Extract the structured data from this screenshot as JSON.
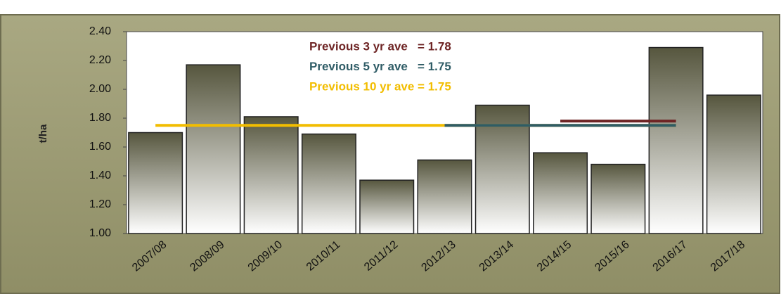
{
  "chart_data": {
    "type": "bar",
    "categories": [
      "2007/08",
      "2008/09",
      "2009/10",
      "2010/11",
      "2011/12",
      "2012/13",
      "2013/14",
      "2014/15",
      "2015/16",
      "2016/17",
      "2017/18"
    ],
    "values": [
      1.7,
      2.17,
      1.81,
      1.69,
      1.37,
      1.51,
      1.89,
      1.56,
      1.48,
      2.29,
      1.96
    ],
    "color": "#56563e",
    "ylabel": "t/ha",
    "ylim": [
      1.0,
      2.4
    ],
    "yticks": [
      {
        "value": 1.0,
        "label": "1.00"
      },
      {
        "value": 1.2,
        "label": "1.20"
      },
      {
        "value": 1.4,
        "label": "1.40"
      },
      {
        "value": 1.6,
        "label": "1.60"
      },
      {
        "value": 1.8,
        "label": "1.80"
      },
      {
        "value": 2.0,
        "label": "2.00"
      },
      {
        "value": 2.2,
        "label": "2.20"
      },
      {
        "value": 2.4,
        "label": "2.40"
      }
    ],
    "series": [
      {
        "name": "Previous 3 yr ave   = 1.78",
        "color": "#6e2424",
        "values": [
          null,
          null,
          null,
          null,
          null,
          null,
          null,
          1.78,
          1.78,
          1.78,
          null
        ]
      },
      {
        "name": "Previous 5 yr ave   = 1.75",
        "color": "#2f5c66",
        "values": [
          null,
          null,
          null,
          null,
          null,
          1.75,
          1.75,
          1.75,
          1.75,
          1.75,
          null
        ]
      },
      {
        "name": "Previous 10 yr ave = 1.75",
        "color": "#f2bd00",
        "values": [
          1.75,
          1.75,
          1.75,
          1.75,
          1.75,
          1.75,
          1.75,
          1.75,
          1.75,
          1.75,
          null
        ]
      }
    ]
  }
}
